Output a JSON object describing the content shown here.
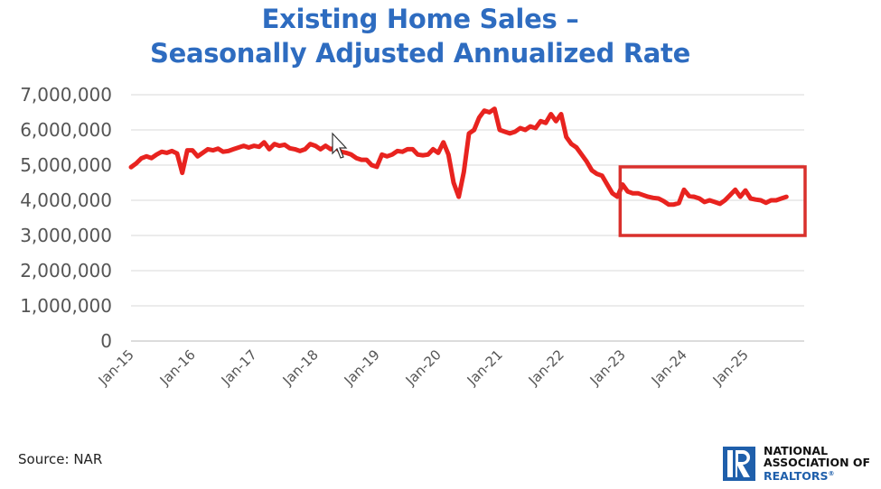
{
  "chart_data": {
    "type": "line",
    "title": "Existing Home Sales –",
    "subtitle": "Seasonally Adjusted Annualized Rate",
    "xlabel": "",
    "ylabel": "",
    "start_month": "2015-01",
    "frequency": "monthly",
    "series": [
      {
        "name": "Existing Home Sales (SAAR)",
        "color": "#e8231f",
        "values": [
          4940000,
          5050000,
          5190000,
          5250000,
          5200000,
          5300000,
          5380000,
          5350000,
          5400000,
          5330000,
          4780000,
          5420000,
          5420000,
          5250000,
          5350000,
          5450000,
          5420000,
          5470000,
          5380000,
          5400000,
          5450000,
          5500000,
          5550000,
          5500000,
          5550000,
          5520000,
          5650000,
          5450000,
          5600000,
          5550000,
          5580000,
          5480000,
          5450000,
          5400000,
          5450000,
          5600000,
          5550000,
          5450000,
          5550000,
          5450000,
          5500000,
          5380000,
          5350000,
          5300000,
          5200000,
          5150000,
          5150000,
          5000000,
          4950000,
          5300000,
          5250000,
          5300000,
          5400000,
          5380000,
          5450000,
          5450000,
          5300000,
          5280000,
          5300000,
          5450000,
          5350000,
          5650000,
          5300000,
          4500000,
          4100000,
          4800000,
          5900000,
          6000000,
          6350000,
          6550000,
          6500000,
          6600000,
          6000000,
          5950000,
          5900000,
          5950000,
          6050000,
          6000000,
          6100000,
          6050000,
          6250000,
          6200000,
          6450000,
          6250000,
          6450000,
          5800000,
          5600000,
          5500000,
          5300000,
          5100000,
          4850000,
          4750000,
          4700000,
          4450000,
          4200000,
          4100000,
          4450000,
          4250000,
          4200000,
          4200000,
          4150000,
          4100000,
          4070000,
          4050000,
          3980000,
          3880000,
          3880000,
          3920000,
          4300000,
          4120000,
          4100000,
          4050000,
          3950000,
          4000000,
          3950000,
          3900000,
          4000000,
          4150000,
          4300000,
          4100000,
          4280000,
          4050000,
          4020000,
          4000000,
          3930000,
          4000000,
          4000000,
          4050000,
          4100000
        ]
      }
    ],
    "ylim": [
      0,
      7000000
    ],
    "yticks": [
      "0",
      "1,000,000",
      "2,000,000",
      "3,000,000",
      "4,000,000",
      "5,000,000",
      "6,000,000",
      "7,000,000"
    ],
    "xticks": [
      "Jan-15",
      "Jan-16",
      "Jan-17",
      "Jan-18",
      "Jan-19",
      "Jan-20",
      "Jan-21",
      "Jan-22",
      "Jan-23",
      "Jan-24",
      "Jan-25"
    ],
    "grid": true,
    "legend": "none",
    "annotations": [
      {
        "type": "highlight-box",
        "color": "#d9302c",
        "x_from": "2022-12",
        "x_to": "2026-01",
        "y_from": 3000000,
        "y_to": 4950000
      }
    ]
  },
  "source": "Source: NAR",
  "logo": {
    "line1": "NATIONAL",
    "line2": "ASSOCIATION OF",
    "line3": "REALTORS",
    "mark": "R",
    "reg": "®"
  },
  "colors": {
    "title": "#2e6cc0",
    "line": "#e8231f",
    "box": "#d9302c",
    "logo": "#1f5fab"
  }
}
